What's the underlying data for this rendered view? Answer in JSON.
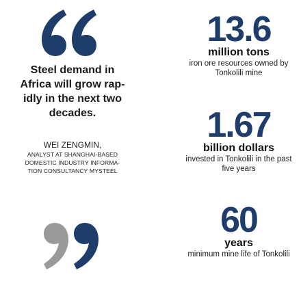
{
  "quote": {
    "text": "Steel demand in\nAfrica will grow rap-\nidly in the next two\ndecades.",
    "attribution_name": "WEI ZENGMIN,",
    "attribution_title": "ANALYST AT SHANGHAI-BASED\nDOMESTIC INDUSTRY INFORMA-\nTION CONSULTANCY MYSTEEL"
  },
  "stats": [
    {
      "value": "13.6",
      "unit": "million tons",
      "description": "iron ore resources owned by\nTonkolili mine"
    },
    {
      "value": "1.67",
      "unit": "billion dollars",
      "description": "invested in Tonkolili in the past\nfive years"
    },
    {
      "value": "60",
      "unit": "years",
      "description": "minimum mine life of Tonkolili"
    }
  ],
  "colors": {
    "quote_open": "#1f3d6b",
    "quote_close_left": "#9a9a9a",
    "quote_close_right": "#1f3d6b",
    "stat_number": "#1f3d6b"
  }
}
